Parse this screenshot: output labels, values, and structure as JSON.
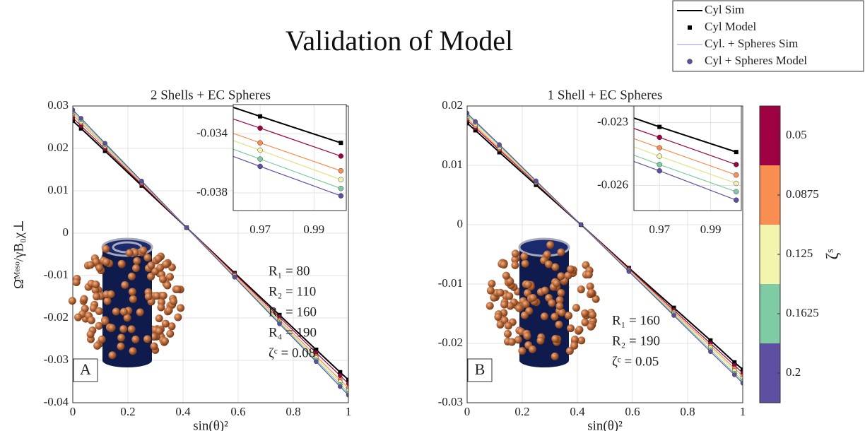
{
  "title": "Validation of Model",
  "legend": [
    {
      "label": "Cyl Sim",
      "style": "line",
      "color": "#000000"
    },
    {
      "label": "Cyl Model",
      "style": "square",
      "color": "#000000"
    },
    {
      "label": "Cyl. + Spheres Sim",
      "style": "line",
      "color": "#9a93cc"
    },
    {
      "label": "Cyl + Spheres Model",
      "style": "circle",
      "color": "#5e4fa2"
    }
  ],
  "colorbar": {
    "label": "ζˢ",
    "ticks": [
      0.05,
      0.0875,
      0.125,
      0.1625,
      0.2
    ],
    "colors": [
      "#9e0142",
      "#f98e52",
      "#f3f5ae",
      "#7fcba4",
      "#5e4fa2"
    ]
  },
  "chart_data": [
    {
      "type": "line",
      "title": "2 Shells + EC Spheres",
      "xlabel": "sin(θ)²",
      "ylabel": "Ω̄ᴹᵉˢᵒ/γB₀χ⊥",
      "x": [
        0,
        0.03,
        0.117,
        0.25,
        0.413,
        0.587,
        0.75,
        0.883,
        0.97,
        1
      ],
      "xlim": [
        0,
        1
      ],
      "ylim": [
        -0.04,
        0.03
      ],
      "xticks": [
        0,
        0.2,
        0.4,
        0.6,
        0.8,
        1
      ],
      "yticks": [
        -0.04,
        -0.03,
        -0.02,
        -0.01,
        0,
        0.01,
        0.02,
        0.03
      ],
      "grid": true,
      "series": [
        {
          "color": "#000000",
          "sim": [
            0.0265,
            0.0247,
            0.0194,
            0.0112,
            0.0013,
            -0.0094,
            -0.0193,
            -0.0275,
            -0.0328,
            -0.0346
          ],
          "model": [
            0.0265,
            0.0247,
            0.0194,
            0.0112,
            0.0013,
            -0.0094,
            -0.0193,
            -0.0275,
            -0.0328,
            -0.0346
          ]
        },
        {
          "color": "#9e0142",
          "sim": [
            0.0272,
            0.0253,
            0.0199,
            0.0115,
            0.0013,
            -0.0096,
            -0.0198,
            -0.0282,
            -0.0336,
            -0.0355
          ],
          "model": [
            0.0272,
            0.0253,
            0.0199,
            0.0115,
            0.0013,
            -0.0096,
            -0.0198,
            -0.0282,
            -0.0336,
            -0.0355
          ]
        },
        {
          "color": "#f98e52",
          "sim": [
            0.0279,
            0.026,
            0.0204,
            0.0118,
            0.0013,
            -0.0099,
            -0.0204,
            -0.029,
            -0.0346,
            -0.0365
          ],
          "model": [
            0.0279,
            0.026,
            0.0204,
            0.0118,
            0.0013,
            -0.0099,
            -0.0204,
            -0.029,
            -0.0346,
            -0.0365
          ]
        },
        {
          "color": "#f3f5ae",
          "sim": [
            0.0283,
            0.0263,
            0.0206,
            0.012,
            0.0013,
            -0.0101,
            -0.0208,
            -0.0294,
            -0.0351,
            -0.0371
          ],
          "model": [
            0.0283,
            0.0263,
            0.0206,
            0.012,
            0.0013,
            -0.0101,
            -0.0208,
            -0.0294,
            -0.0351,
            -0.0371
          ]
        },
        {
          "color": "#7fcba4",
          "sim": [
            0.0287,
            0.0267,
            0.0209,
            0.0121,
            0.0013,
            -0.0103,
            -0.0211,
            -0.0299,
            -0.0357,
            -0.0377
          ],
          "model": [
            0.0287,
            0.0267,
            0.0209,
            0.0121,
            0.0013,
            -0.0103,
            -0.0211,
            -0.0299,
            -0.0357,
            -0.0377
          ]
        },
        {
          "color": "#5e4fa2",
          "sim": [
            0.0291,
            0.0271,
            0.0212,
            0.0123,
            0.0013,
            -0.0104,
            -0.0214,
            -0.0303,
            -0.0362,
            -0.0382
          ],
          "model": [
            0.0291,
            0.0271,
            0.0212,
            0.0123,
            0.0013,
            -0.0104,
            -0.0214,
            -0.0303,
            -0.0362,
            -0.0382
          ]
        }
      ],
      "inset": {
        "xlim": [
          0.96,
          1.002
        ],
        "ylim": [
          -0.0392,
          -0.032
        ],
        "xticks": [
          0.97,
          0.99
        ],
        "yticks": [
          -0.034,
          -0.038
        ]
      },
      "panel_label": "A",
      "params": [
        "R₁ = 80",
        "R₂ = 110",
        "R₃ = 160",
        "R₄ = 190",
        "ζᶜ = 0.08"
      ]
    },
    {
      "type": "line",
      "title": "1 Shell + EC Spheres",
      "xlabel": "sin(θ)²",
      "x": [
        0,
        0.03,
        0.117,
        0.25,
        0.413,
        0.587,
        0.75,
        0.883,
        0.97,
        1
      ],
      "xlim": [
        0,
        1
      ],
      "ylim": [
        -0.03,
        0.02
      ],
      "xticks": [
        0,
        0.2,
        0.4,
        0.6,
        0.8,
        1
      ],
      "yticks": [
        -0.03,
        -0.02,
        -0.01,
        0,
        0.01,
        0.02
      ],
      "grid": true,
      "series": [
        {
          "color": "#000000",
          "sim": [
            0.0171,
            0.0159,
            0.0122,
            0.0067,
            0,
            -0.0073,
            -0.014,
            -0.0195,
            -0.0232,
            -0.0244
          ],
          "model": [
            0.0171,
            0.0159,
            0.0122,
            0.0067,
            0,
            -0.0073,
            -0.014,
            -0.0195,
            -0.0232,
            -0.0244
          ]
        },
        {
          "color": "#9e0142",
          "sim": [
            0.0176,
            0.0163,
            0.0126,
            0.007,
            0,
            -0.0074,
            -0.0144,
            -0.02,
            -0.0237,
            -0.025
          ],
          "model": [
            0.0176,
            0.0163,
            0.0126,
            0.007,
            0,
            -0.0074,
            -0.0144,
            -0.02,
            -0.0237,
            -0.025
          ]
        },
        {
          "color": "#f98e52",
          "sim": [
            0.0179,
            0.0166,
            0.0128,
            0.0071,
            0,
            -0.0076,
            -0.0147,
            -0.0204,
            -0.0242,
            -0.0255
          ],
          "model": [
            0.0179,
            0.0166,
            0.0128,
            0.0071,
            0,
            -0.0076,
            -0.0147,
            -0.0204,
            -0.0242,
            -0.0255
          ]
        },
        {
          "color": "#f3f5ae",
          "sim": [
            0.0182,
            0.0169,
            0.013,
            0.0072,
            0,
            -0.0077,
            -0.0149,
            -0.0207,
            -0.0246,
            -0.0259
          ],
          "model": [
            0.0182,
            0.0169,
            0.013,
            0.0072,
            0,
            -0.0077,
            -0.0149,
            -0.0207,
            -0.0246,
            -0.0259
          ]
        },
        {
          "color": "#7fcba4",
          "sim": [
            0.0185,
            0.0172,
            0.0133,
            0.0073,
            0,
            -0.0078,
            -0.0151,
            -0.0211,
            -0.025,
            -0.0263
          ],
          "model": [
            0.0185,
            0.0172,
            0.0133,
            0.0073,
            0,
            -0.0078,
            -0.0151,
            -0.0211,
            -0.025,
            -0.0263
          ]
        },
        {
          "color": "#5e4fa2",
          "sim": [
            0.0188,
            0.0174,
            0.0135,
            0.0074,
            0,
            -0.0079,
            -0.0153,
            -0.0214,
            -0.0253,
            -0.0267
          ],
          "model": [
            0.0188,
            0.0174,
            0.0135,
            0.0074,
            0,
            -0.0079,
            -0.0153,
            -0.0214,
            -0.0253,
            -0.0267
          ]
        }
      ],
      "inset": {
        "xlim": [
          0.96,
          1.002
        ],
        "ylim": [
          -0.0272,
          -0.0222
        ],
        "xticks": [
          0.97,
          0.99
        ],
        "yticks": [
          -0.023,
          -0.026
        ]
      },
      "panel_label": "B",
      "params": [
        "R₁ = 160",
        "R₂ = 190",
        "ζᶜ = 0.05"
      ]
    }
  ]
}
